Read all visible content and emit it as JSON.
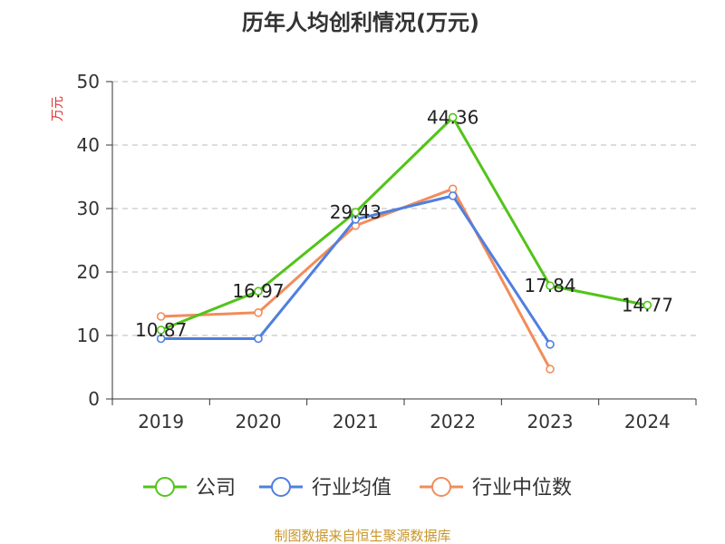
{
  "title": "历年人均创利情况(万元)",
  "unit_label": "万元",
  "source": "制图数据来自恒生聚源数据库",
  "colors": {
    "company": "#52c41a",
    "industry_avg": "#4f7fe0",
    "industry_median": "#f28c5a",
    "unit_label": "#e03030",
    "source": "#c8962a",
    "grid": "#bbbbbb",
    "axis": "#333333"
  },
  "chart_data": {
    "type": "line",
    "title": "历年人均创利情况(万元)",
    "xlabel": "",
    "ylabel": "万元",
    "categories": [
      "2019",
      "2020",
      "2021",
      "2022",
      "2023",
      "2024"
    ],
    "ylim": [
      0,
      50
    ],
    "yticks": [
      0,
      10,
      20,
      30,
      40,
      50
    ],
    "grid": true,
    "legend_position": "bottom",
    "series": [
      {
        "name": "公司",
        "color": "#52c41a",
        "values": [
          10.87,
          16.97,
          29.43,
          44.36,
          17.84,
          14.77
        ],
        "labels": [
          "10.87",
          "16.97",
          "29.43",
          "44.36",
          "17.84",
          "14.77"
        ]
      },
      {
        "name": "行业均值",
        "color": "#4f7fe0",
        "values": [
          9.5,
          9.5,
          28.3,
          32.0,
          8.6,
          null
        ]
      },
      {
        "name": "行业中位数",
        "color": "#f28c5a",
        "values": [
          13.0,
          13.6,
          27.3,
          33.1,
          4.7,
          null
        ]
      }
    ]
  }
}
